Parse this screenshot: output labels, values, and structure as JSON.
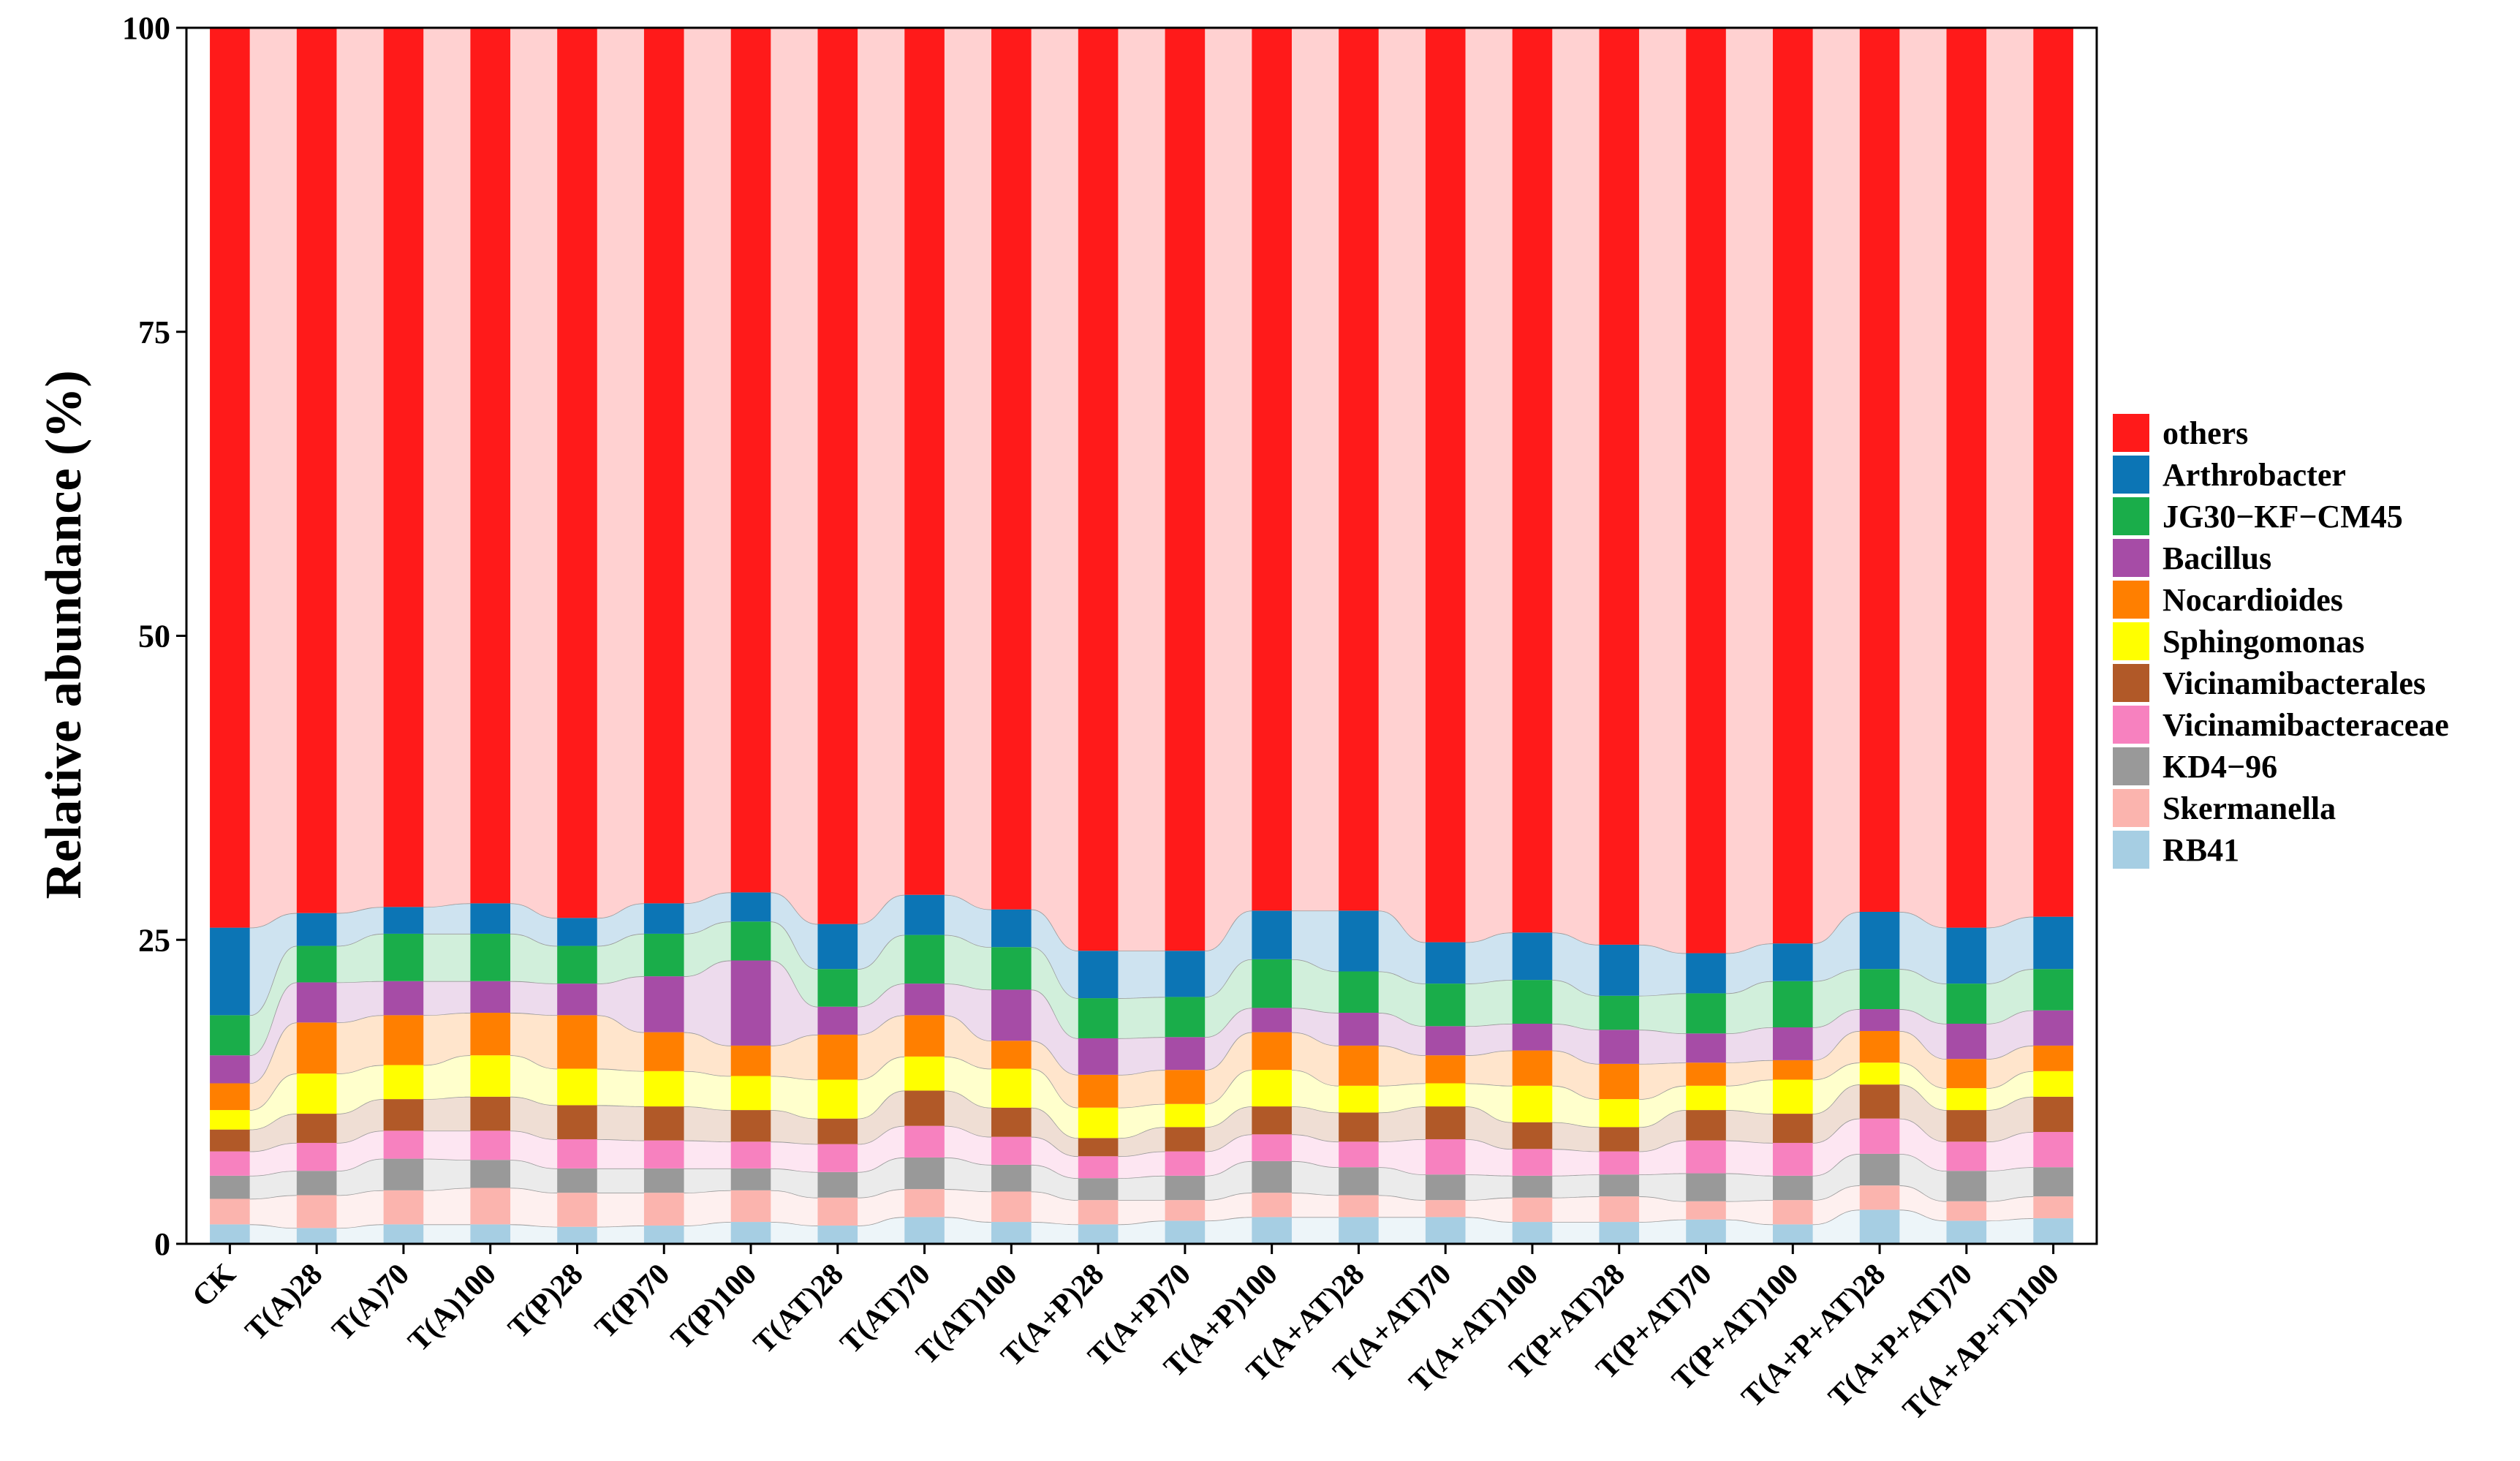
{
  "chart_data": {
    "type": "bar",
    "stacked": true,
    "alluvial_bands": true,
    "ylabel": "Relative abundance (%)",
    "xlabel": "",
    "ylim": [
      0,
      100
    ],
    "yticks": [
      0,
      25,
      50,
      75,
      100
    ],
    "legend_position": "right",
    "categories": [
      "CK",
      "T(A)28",
      "T(A)70",
      "T(A)100",
      "T(P)28",
      "T(P)70",
      "T(P)100",
      "T(AT)28",
      "T(AT)70",
      "T(AT)100",
      "T(A+P)28",
      "T(A+P)70",
      "T(A+P)100",
      "T(A+AT)28",
      "T(A+AT)70",
      "T(A+AT)100",
      "T(P+AT)28",
      "T(P+AT)70",
      "T(P+AT)100",
      "T(A+P+AT)28",
      "T(A+P+AT)70",
      "T(A+AP+T)100"
    ],
    "series": [
      {
        "name": "RB41",
        "color": "#a6cee3",
        "values": [
          1.6,
          1.3,
          1.6,
          1.6,
          1.4,
          1.5,
          1.8,
          1.5,
          2.2,
          1.8,
          1.6,
          1.9,
          2.2,
          2.2,
          2.2,
          1.8,
          1.8,
          2.0,
          1.6,
          2.8,
          1.9,
          2.1
        ]
      },
      {
        "name": "Skermanella",
        "color": "#fbb4ae",
        "values": [
          2.1,
          2.7,
          2.8,
          3.0,
          2.8,
          2.7,
          2.6,
          2.3,
          2.3,
          2.5,
          2.0,
          1.7,
          2.0,
          1.8,
          1.4,
          2.0,
          2.1,
          1.5,
          2.0,
          2.0,
          1.6,
          1.8
        ]
      },
      {
        "name": "KD4−96",
        "color": "#999999",
        "values": [
          1.9,
          2.0,
          2.6,
          2.3,
          2.0,
          2.0,
          1.8,
          2.1,
          2.6,
          2.2,
          1.8,
          2.0,
          2.6,
          2.3,
          2.1,
          1.8,
          1.8,
          2.3,
          2.0,
          2.6,
          2.5,
          2.4
        ]
      },
      {
        "name": "Vicinamibacteraceae",
        "color": "#f781bf",
        "values": [
          2.0,
          2.3,
          2.3,
          2.4,
          2.4,
          2.3,
          2.2,
          2.3,
          2.6,
          2.3,
          1.8,
          2.0,
          2.2,
          2.1,
          2.9,
          2.2,
          1.9,
          2.7,
          2.7,
          2.9,
          2.4,
          2.9
        ]
      },
      {
        "name": "Vicinamibacterales",
        "color": "#b15928",
        "values": [
          1.8,
          2.4,
          2.6,
          2.8,
          2.8,
          2.8,
          2.6,
          2.1,
          2.9,
          2.4,
          1.5,
          2.0,
          2.3,
          2.4,
          2.7,
          2.2,
          2.0,
          2.5,
          2.4,
          2.8,
          2.6,
          2.9
        ]
      },
      {
        "name": "Sphingomonas",
        "color": "#ffff00",
        "values": [
          1.6,
          3.3,
          2.8,
          3.4,
          3.0,
          2.9,
          2.8,
          3.2,
          2.8,
          3.2,
          2.5,
          1.9,
          3.0,
          2.2,
          1.9,
          3.0,
          2.3,
          2.0,
          2.8,
          1.8,
          1.8,
          2.1
        ]
      },
      {
        "name": "Nocardioides",
        "color": "#ff7f00",
        "values": [
          2.2,
          4.2,
          4.1,
          3.5,
          4.4,
          3.2,
          2.5,
          3.7,
          3.4,
          2.3,
          2.7,
          2.8,
          3.1,
          3.3,
          2.3,
          2.9,
          2.9,
          1.9,
          1.6,
          2.6,
          2.4,
          2.1
        ]
      },
      {
        "name": "Bacillus",
        "color": "#a64ca6",
        "values": [
          2.3,
          3.3,
          2.8,
          2.6,
          2.6,
          4.6,
          7.0,
          2.3,
          2.6,
          4.2,
          3.0,
          2.7,
          2.0,
          2.7,
          2.4,
          2.2,
          2.8,
          2.4,
          2.7,
          1.8,
          2.9,
          2.9
        ]
      },
      {
        "name": "JG30−KF−CM45",
        "color": "#1aad4a",
        "values": [
          3.3,
          3.0,
          3.9,
          3.9,
          3.1,
          3.5,
          3.2,
          3.1,
          4.0,
          3.5,
          3.3,
          3.3,
          4.0,
          3.4,
          3.5,
          3.6,
          2.8,
          3.3,
          3.8,
          3.3,
          3.3,
          3.4
        ]
      },
      {
        "name": "Arthrobacter",
        "color": "#0c75b5",
        "values": [
          7.2,
          2.7,
          2.2,
          2.5,
          2.3,
          2.5,
          2.4,
          3.7,
          3.3,
          3.1,
          3.9,
          3.8,
          4.0,
          5.0,
          3.4,
          3.9,
          4.2,
          3.3,
          3.1,
          4.7,
          4.6,
          4.3
        ]
      },
      {
        "name": "others",
        "color": "#ff1a1a",
        "values": [
          74.0,
          72.8,
          72.3,
          72.0,
          73.2,
          72.0,
          71.1,
          73.7,
          71.3,
          72.5,
          75.9,
          75.9,
          72.6,
          72.6,
          75.2,
          74.4,
          75.4,
          76.1,
          75.3,
          72.7,
          74.0,
          73.1
        ]
      }
    ]
  }
}
